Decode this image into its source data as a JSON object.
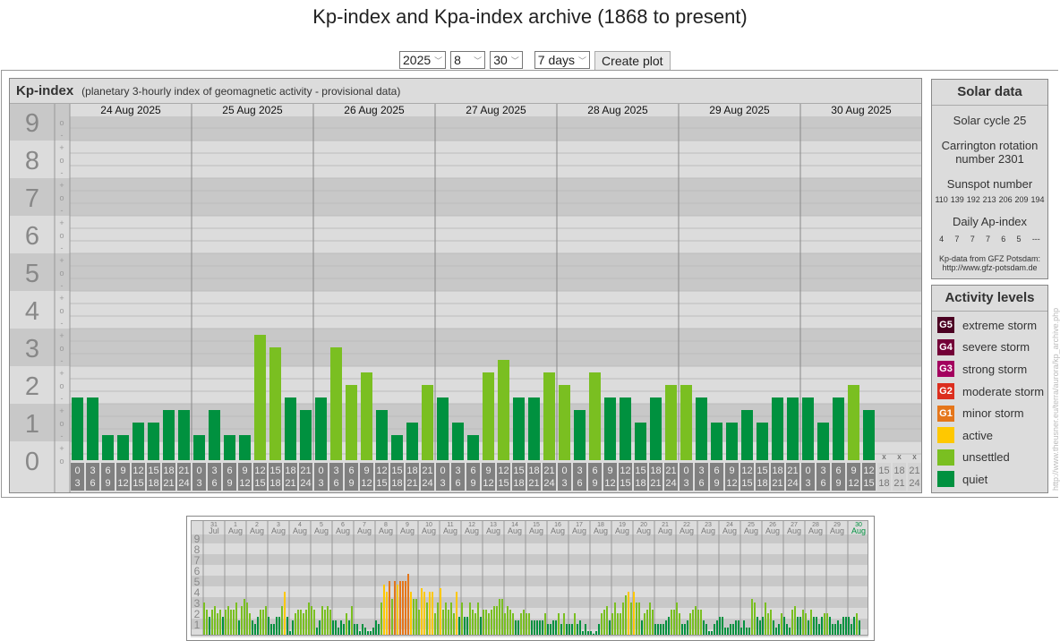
{
  "title": "Kp-index and Kpa-index archive (1868 to present)",
  "controls": {
    "year": "2025",
    "month": "8",
    "day": "30",
    "span": "7 days",
    "create_label": "Create plot"
  },
  "kp_panel": {
    "title": "Kp-index",
    "subtitle": "(planetary 3-hourly index of geomagnetic activity - provisional data)"
  },
  "colors": {
    "quiet": "#00913f",
    "unsettled": "#7abf21",
    "active": "#ffc800",
    "G1": "#e5761a",
    "G2": "#dc2e1e",
    "G3": "#a3005e",
    "G4": "#730037",
    "G5": "#4b0022",
    "today": "#00913f"
  },
  "chart_data": [
    {
      "type": "bar",
      "title": "Kp-index",
      "ylim": [
        0,
        9
      ],
      "y_ticks": [
        "0",
        "1",
        "2",
        "3",
        "4",
        "5",
        "6",
        "7",
        "8",
        "9"
      ],
      "sub_ticks": [
        "-",
        "o",
        "+"
      ],
      "interval_labels": [
        [
          "0",
          "3"
        ],
        [
          "3",
          "6"
        ],
        [
          "6",
          "9"
        ],
        [
          "9",
          "12"
        ],
        [
          "12",
          "15"
        ],
        [
          "15",
          "18"
        ],
        [
          "18",
          "21"
        ],
        [
          "21",
          "24"
        ]
      ],
      "missing_marker": "x",
      "days": [
        {
          "label": "24 Aug 2025",
          "kp": [
            "2-",
            "2-",
            "1-",
            "1-",
            "1o",
            "1o",
            "1+",
            "1+"
          ]
        },
        {
          "label": "25 Aug 2025",
          "kp": [
            "1-",
            "1+",
            "1-",
            "1-",
            "3+",
            "3o",
            "2-",
            "1+"
          ]
        },
        {
          "label": "26 Aug 2025",
          "kp": [
            "2-",
            "3o",
            "2o",
            "2+",
            "1+",
            "1-",
            "1o",
            "2o"
          ]
        },
        {
          "label": "27 Aug 2025",
          "kp": [
            "2-",
            "1o",
            "1-",
            "2+",
            "3-",
            "2-",
            "2-",
            "2+"
          ]
        },
        {
          "label": "28 Aug 2025",
          "kp": [
            "2o",
            "1+",
            "2+",
            "2-",
            "2-",
            "1o",
            "2-",
            "2o"
          ]
        },
        {
          "label": "29 Aug 2025",
          "kp": [
            "2o",
            "2-",
            "1o",
            "1o",
            "1+",
            "1o",
            "2-",
            "2-"
          ]
        },
        {
          "label": "30 Aug 2025",
          "kp": [
            "2-",
            "1o",
            "2-",
            "2o",
            "1+",
            null,
            null,
            null
          ]
        }
      ]
    },
    {
      "type": "bar",
      "title": "",
      "ylim": [
        0,
        9
      ],
      "y_ticks": [
        "1",
        "2",
        "3",
        "4",
        "5",
        "6",
        "7",
        "8",
        "9"
      ],
      "days": [
        {
          "day": "31",
          "month": "Jul",
          "kp": [
            "3o",
            "2+",
            "2-",
            "2+",
            "3-",
            "2o",
            "2+",
            "2-"
          ]
        },
        {
          "day": "1",
          "month": "Aug",
          "kp": [
            "2+",
            "3-",
            "2+",
            "2+",
            "3o",
            "1+",
            "3-",
            "3+"
          ]
        },
        {
          "day": "2",
          "month": "Aug",
          "kp": [
            "3o",
            "2o",
            "1+",
            "1o",
            "2-",
            "2+",
            "2+",
            "3-"
          ]
        },
        {
          "day": "3",
          "month": "Aug",
          "kp": [
            "2-",
            "1o",
            "1o",
            "2-",
            "2-",
            "3-",
            "4o",
            "2-"
          ]
        },
        {
          "day": "4",
          "month": "Aug",
          "kp": [
            "0+",
            "1+",
            "2o",
            "2+",
            "2+",
            "2o",
            "2+",
            "3o"
          ]
        },
        {
          "day": "5",
          "month": "Aug",
          "kp": [
            "3-",
            "2+",
            "1-",
            "1+",
            "3-",
            "2+",
            "3-",
            "2+"
          ]
        },
        {
          "day": "6",
          "month": "Aug",
          "kp": [
            "1+",
            "1+",
            "1-",
            "1+",
            "1o",
            "2o",
            "1+",
            "3-"
          ]
        },
        {
          "day": "7",
          "month": "Aug",
          "kp": [
            "1o",
            "1o",
            "0+",
            "1o",
            "1-",
            "0+",
            "0+",
            "1-"
          ]
        },
        {
          "day": "8",
          "month": "Aug",
          "kp": [
            "1+",
            "1o",
            "3o",
            "5-",
            "4o",
            "5o",
            "3+",
            "5o"
          ]
        },
        {
          "day": "9",
          "month": "Aug",
          "kp": [
            "5-",
            "5o",
            "5o",
            "5o",
            "6-",
            "4o",
            "3+",
            "3+"
          ]
        },
        {
          "day": "10",
          "month": "Aug",
          "kp": [
            "2+",
            "4+",
            "4o",
            "3o",
            "4o",
            "4o",
            "2o",
            "3o"
          ]
        },
        {
          "day": "11",
          "month": "Aug",
          "kp": [
            "4+",
            "2+",
            "3o",
            "2+",
            "3o",
            "2o",
            "4o",
            "2-"
          ]
        },
        {
          "day": "12",
          "month": "Aug",
          "kp": [
            "3o",
            "2-",
            "2-",
            "3o",
            "2+",
            "2o",
            "3o",
            "2-"
          ]
        },
        {
          "day": "13",
          "month": "Aug",
          "kp": [
            "2+",
            "2+",
            "2o",
            "2+",
            "3-",
            "3-",
            "3+",
            "3+"
          ]
        },
        {
          "day": "14",
          "month": "Aug",
          "kp": [
            "2o",
            "3-",
            "2+",
            "2o",
            "1+",
            "1+",
            "2o",
            "2+"
          ]
        },
        {
          "day": "15",
          "month": "Aug",
          "kp": [
            "2o",
            "2o",
            "1+",
            "1+",
            "1+",
            "1+",
            "1+",
            "2o"
          ]
        },
        {
          "day": "16",
          "month": "Aug",
          "kp": [
            "1o",
            "1o",
            "1+",
            "1+",
            "2o",
            "1o",
            "2o",
            "1o"
          ]
        },
        {
          "day": "17",
          "month": "Aug",
          "kp": [
            "1o",
            "1o",
            "2o",
            "1o",
            "1+",
            "0+",
            "1o",
            "0+"
          ]
        },
        {
          "day": "18",
          "month": "Aug",
          "kp": [
            "0+",
            "0o",
            "0+",
            "1o",
            "2o",
            "2+",
            "3-",
            "1+"
          ]
        },
        {
          "day": "19",
          "month": "Aug",
          "kp": [
            "2o",
            "3o",
            "2o",
            "2o",
            "3o",
            "4-",
            "4o",
            "3o"
          ]
        },
        {
          "day": "20",
          "month": "Aug",
          "kp": [
            "4o",
            "3o",
            "3o",
            "1+",
            "2o",
            "2+",
            "3o",
            "2+"
          ]
        },
        {
          "day": "21",
          "month": "Aug",
          "kp": [
            "1o",
            "1o",
            "1o",
            "1o",
            "1+",
            "2-",
            "2+",
            "2+"
          ]
        },
        {
          "day": "22",
          "month": "Aug",
          "kp": [
            "3o",
            "2o",
            "1o",
            "1o",
            "1+",
            "2o",
            "2+",
            "3-"
          ]
        },
        {
          "day": "23",
          "month": "Aug",
          "kp": [
            "2+",
            "2+",
            "1+",
            "1o",
            "0+",
            "0+",
            "1o",
            "1+"
          ]
        },
        {
          "day": "24",
          "month": "Aug",
          "kp": [
            "2-",
            "2-",
            "1-",
            "1-",
            "1o",
            "1o",
            "1+",
            "1+"
          ]
        },
        {
          "day": "25",
          "month": "Aug",
          "kp": [
            "1-",
            "1+",
            "1-",
            "1-",
            "3+",
            "3o",
            "2-",
            "1+"
          ]
        },
        {
          "day": "26",
          "month": "Aug",
          "kp": [
            "2-",
            "3o",
            "2o",
            "2+",
            "1+",
            "1-",
            "1o",
            "2o"
          ]
        },
        {
          "day": "27",
          "month": "Aug",
          "kp": [
            "2-",
            "1o",
            "1-",
            "2+",
            "3-",
            "2-",
            "2-",
            "2+"
          ]
        },
        {
          "day": "28",
          "month": "Aug",
          "kp": [
            "2o",
            "1+",
            "2+",
            "2-",
            "2-",
            "1o",
            "2-",
            "2o"
          ]
        },
        {
          "day": "29",
          "month": "Aug",
          "kp": [
            "2o",
            "2-",
            "1o",
            "1o",
            "1+",
            "1o",
            "2-",
            "2-"
          ]
        },
        {
          "day": "30",
          "month": "Aug",
          "kp": [
            "2-",
            "1o",
            "2-",
            "2o",
            "1+",
            null,
            null,
            null
          ],
          "current": true
        }
      ]
    }
  ],
  "solar": {
    "title": "Solar data",
    "cycle": "Solar cycle 25",
    "carrington_1": "Carrington rotation",
    "carrington_2": "number 2301",
    "sunspot_label": "Sunspot number",
    "sunspots": [
      "110",
      "139",
      "192",
      "213",
      "206",
      "209",
      "194"
    ],
    "ap_label": "Daily Ap-index",
    "ap": [
      "4",
      "7",
      "7",
      "7",
      "6",
      "5",
      "---"
    ],
    "credit_1": "Kp-data from GFZ Potsdam:",
    "credit_2": "http://www.gfz-potsdam.de"
  },
  "activity": {
    "title": "Activity levels",
    "levels": [
      {
        "code": "G5",
        "label": "extreme storm",
        "color": "#4b0022"
      },
      {
        "code": "G4",
        "label": "severe storm",
        "color": "#730037"
      },
      {
        "code": "G3",
        "label": "strong storm",
        "color": "#a3005e"
      },
      {
        "code": "G2",
        "label": "moderate storm",
        "color": "#dc2e1e"
      },
      {
        "code": "G1",
        "label": "minor storm",
        "color": "#e5761a"
      },
      {
        "code": "",
        "label": "active",
        "color": "#ffc800"
      },
      {
        "code": "",
        "label": "unsettled",
        "color": "#7abf21"
      },
      {
        "code": "",
        "label": "quiet",
        "color": "#00913f"
      }
    ]
  },
  "credit": "http://www.theusner.eu/terra/aurora/kp_archive.php"
}
